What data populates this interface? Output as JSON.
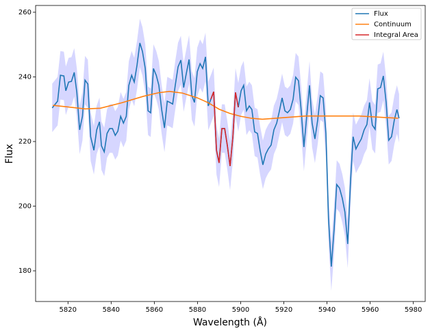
{
  "chart_data": {
    "type": "line",
    "xlabel": "Wavelength  (Å)",
    "ylabel": "Flux",
    "xlim": [
      5805,
      5985.5
    ],
    "ylim": [
      170.5,
      262.1
    ],
    "xticks": [
      5820,
      5840,
      5860,
      5880,
      5900,
      5920,
      5940,
      5960,
      5980
    ],
    "yticks": [
      180,
      200,
      220,
      240,
      260
    ],
    "legend": "upper right",
    "band_color": "#c8c8ff",
    "series": [
      {
        "name": "Flux",
        "color": "#1f77b4",
        "error": 7.5,
        "x": [
          5812.7,
          5815.2,
          5816.5,
          5818.1,
          5819,
          5820.3,
          5821.6,
          5822.9,
          5824.1,
          5825.4,
          5826.7,
          5827.9,
          5829.2,
          5830.5,
          5832,
          5833.3,
          5834.6,
          5835.5,
          5836.8,
          5838.1,
          5839.3,
          5840.6,
          5841.9,
          5843.1,
          5844.4,
          5845.7,
          5847,
          5848.2,
          5849.5,
          5850.7,
          5852,
          5853.3,
          5854.5,
          5855.8,
          5857.1,
          5858.3,
          5859.6,
          5860.9,
          5862.1,
          5863.4,
          5864.7,
          5866,
          5867.2,
          5868.5,
          5869.7,
          5871,
          5872.3,
          5873.6,
          5874.8,
          5876.1,
          5877.4,
          5878.6,
          5879.9,
          5881.2,
          5882.4,
          5883.7,
          5885,
          5886.2,
          5887.5,
          5888.8,
          5890,
          5891.3,
          5892.6,
          5893.8,
          5895.1,
          5896.4,
          5897.6,
          5898.9,
          5900.2,
          5901.4,
          5902.7,
          5904,
          5905.2,
          5906.5,
          5907.8,
          5909,
          5910.3,
          5911.6,
          5912.8,
          5914.1,
          5915.4,
          5916.7,
          5917.9,
          5919.2,
          5920.5,
          5921.7,
          5923,
          5924.3,
          5925.5,
          5926.8,
          5928,
          5929.3,
          5930.6,
          5931.9,
          5933.1,
          5934.4,
          5935.7,
          5936.9,
          5938.2,
          5939.5,
          5940.7,
          5942,
          5943.3,
          5944.5,
          5945.8,
          5947.1,
          5948.3,
          5949.6,
          5950.9,
          5952.1,
          5953.4,
          5954.7,
          5955.9,
          5957.2,
          5958.5,
          5959.7,
          5961,
          5962.3,
          5963.5,
          5964.8,
          5966.1,
          5967.4,
          5968.6,
          5969.9,
          5971.2,
          5972.4,
          5973.4
        ],
        "values": [
          230.4,
          232.5,
          240.5,
          240.3,
          235.7,
          238.4,
          238.6,
          241.4,
          235.2,
          223.6,
          227.8,
          239,
          237.8,
          221.5,
          217.3,
          223.6,
          226.1,
          218.7,
          216.8,
          222.5,
          224,
          224,
          221.9,
          223.2,
          227.8,
          225.7,
          227.8,
          237.4,
          240.5,
          238.4,
          243.7,
          250.5,
          247.9,
          242.6,
          229.5,
          228.9,
          242.6,
          240.5,
          237.4,
          229.9,
          224.2,
          232.5,
          232.1,
          231.6,
          237.4,
          243.1,
          245.2,
          236.7,
          241,
          245.4,
          234.2,
          232.1,
          241.6,
          244.1,
          242.6,
          246.2,
          231,
          233.1,
          235.4,
          217.3,
          213.4,
          224,
          224,
          218.9,
          212.4,
          221.5,
          235.2,
          230.6,
          235.7,
          237.4,
          229.5,
          231,
          229.9,
          223,
          222.5,
          217.3,
          212.8,
          216.1,
          217.7,
          218.9,
          223.6,
          225.7,
          229.3,
          233.5,
          229.5,
          228.9,
          229.9,
          233.1,
          239.9,
          238.8,
          229.9,
          218.3,
          227.8,
          237.4,
          225.7,
          220.8,
          226.7,
          234.2,
          233.5,
          222.5,
          196.1,
          181.3,
          192.9,
          206.7,
          205.6,
          202.4,
          198.2,
          188.3,
          207.7,
          221.5,
          217.7,
          219.4,
          220.8,
          223.6,
          225.3,
          232.1,
          225.1,
          223.8,
          236.3,
          236.7,
          240.3,
          232.1,
          220.4,
          221.5,
          226.7,
          229.9,
          227.2
        ]
      },
      {
        "name": "Continuum",
        "color": "#ff7f0e",
        "x": [
          5813,
          5820,
          5828,
          5835,
          5845,
          5855,
          5862,
          5867,
          5873,
          5880,
          5885,
          5890,
          5895,
          5900,
          5905,
          5910,
          5920,
          5930,
          5940,
          5955,
          5965,
          5973
        ],
        "values": [
          231.2,
          230.7,
          230.1,
          230.3,
          232,
          234,
          235.1,
          235.5,
          235,
          233.5,
          232,
          230,
          228.7,
          227.8,
          227.2,
          226.9,
          227.4,
          227.9,
          227.9,
          227.9,
          227.5,
          227.2
        ]
      },
      {
        "name": "Integral Area",
        "color": "#d62728",
        "x": [
          5886.2,
          5887.5,
          5888.8,
          5890,
          5891.3,
          5892.6,
          5893.8,
          5895.1,
          5896.4,
          5897.6,
          5898.9
        ],
        "values": [
          233.1,
          235.4,
          217.3,
          213.4,
          224,
          224,
          218.9,
          212.4,
          221.5,
          235.2,
          230.6
        ]
      }
    ]
  }
}
